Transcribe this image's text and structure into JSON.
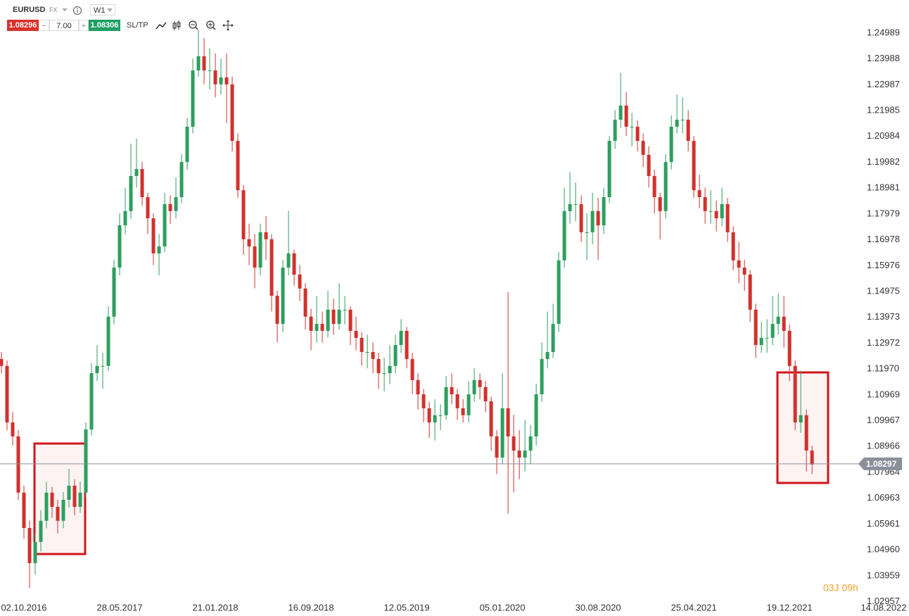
{
  "toolbar": {
    "symbol": "EURUSD",
    "market": "FX",
    "timeframe": "W1",
    "bid": 1.08296,
    "spread": "7.00",
    "ask": 1.08306,
    "sltp": "SL/TP"
  },
  "chart_data": {
    "type": "candlestick",
    "up_color": "#2e9e5e",
    "down_color": "#d0312d",
    "candles": [
      [
        1.1236,
        1.1263,
        1.118,
        1.1209
      ],
      [
        1.1209,
        1.123,
        1.096,
        1.099
      ],
      [
        1.099,
        1.103,
        1.09,
        1.0936
      ],
      [
        1.0936,
        1.096,
        1.069,
        1.0718
      ],
      [
        1.0718,
        1.0745,
        1.054,
        1.0581
      ],
      [
        1.0581,
        1.061,
        1.0349,
        1.0445
      ],
      [
        1.0445,
        1.056,
        1.04,
        1.0527
      ],
      [
        1.0527,
        1.065,
        1.049,
        1.0609
      ],
      [
        1.0609,
        1.076,
        1.058,
        1.0718
      ],
      [
        1.0718,
        1.074,
        1.062,
        1.0663
      ],
      [
        1.0663,
        1.069,
        1.056,
        1.0609
      ],
      [
        1.0609,
        1.072,
        1.058,
        1.069
      ],
      [
        1.069,
        1.081,
        1.066,
        1.0745
      ],
      [
        1.0745,
        1.077,
        1.063,
        1.0663
      ],
      [
        1.0663,
        1.076,
        1.064,
        1.0718
      ],
      [
        1.0718,
        1.099,
        1.07,
        1.0963
      ],
      [
        1.0963,
        1.122,
        1.094,
        1.1181
      ],
      [
        1.1181,
        1.129,
        1.115,
        1.1209
      ],
      [
        1.1209,
        1.126,
        1.112,
        1.1209
      ],
      [
        1.1209,
        1.144,
        1.119,
        1.14
      ],
      [
        1.14,
        1.162,
        1.137,
        1.159
      ],
      [
        1.159,
        1.18,
        1.156,
        1.1754
      ],
      [
        1.1754,
        1.19,
        1.172,
        1.1809
      ],
      [
        1.1809,
        1.207,
        1.178,
        1.1945
      ],
      [
        1.1945,
        1.209,
        1.19,
        1.1972
      ],
      [
        1.1972,
        1.2,
        1.183,
        1.1863
      ],
      [
        1.1863,
        1.188,
        1.172,
        1.1781
      ],
      [
        1.1781,
        1.18,
        1.16,
        1.1645
      ],
      [
        1.1645,
        1.172,
        1.156,
        1.1672
      ],
      [
        1.1672,
        1.188,
        1.165,
        1.1836
      ],
      [
        1.1836,
        1.187,
        1.176,
        1.1809
      ],
      [
        1.1809,
        1.194,
        1.178,
        1.1863
      ],
      [
        1.1863,
        1.203,
        1.184,
        1.1999
      ],
      [
        1.1999,
        1.217,
        1.197,
        1.2136
      ],
      [
        1.2136,
        1.24,
        1.211,
        1.2354
      ],
      [
        1.2354,
        1.251,
        1.233,
        1.2409
      ],
      [
        1.2409,
        1.248,
        1.23,
        1.2354
      ],
      [
        1.2354,
        1.244,
        1.228,
        1.2354
      ],
      [
        1.2354,
        1.242,
        1.225,
        1.23
      ],
      [
        1.23,
        1.24,
        1.226,
        1.2327
      ],
      [
        1.2327,
        1.242,
        1.215,
        1.23
      ],
      [
        1.23,
        1.233,
        1.204,
        1.2081
      ],
      [
        1.2081,
        1.211,
        1.186,
        1.189
      ],
      [
        1.189,
        1.191,
        1.164,
        1.17
      ],
      [
        1.17,
        1.176,
        1.16,
        1.1672
      ],
      [
        1.1672,
        1.172,
        1.151,
        1.159
      ],
      [
        1.159,
        1.176,
        1.156,
        1.1727
      ],
      [
        1.1727,
        1.179,
        1.162,
        1.17
      ],
      [
        1.17,
        1.172,
        1.142,
        1.1481
      ],
      [
        1.1481,
        1.15,
        1.13,
        1.1372
      ],
      [
        1.1372,
        1.162,
        1.134,
        1.159
      ],
      [
        1.159,
        1.181,
        1.156,
        1.1645
      ],
      [
        1.1645,
        1.166,
        1.152,
        1.1563
      ],
      [
        1.1563,
        1.16,
        1.146,
        1.1509
      ],
      [
        1.1509,
        1.153,
        1.135,
        1.14
      ],
      [
        1.14,
        1.143,
        1.127,
        1.1345
      ],
      [
        1.1345,
        1.148,
        1.13,
        1.1372
      ],
      [
        1.1372,
        1.142,
        1.13,
        1.1345
      ],
      [
        1.1345,
        1.15,
        1.132,
        1.1427
      ],
      [
        1.1427,
        1.147,
        1.133,
        1.1372
      ],
      [
        1.1372,
        1.153,
        1.135,
        1.1427
      ],
      [
        1.1427,
        1.148,
        1.137,
        1.1427
      ],
      [
        1.1427,
        1.144,
        1.129,
        1.1345
      ],
      [
        1.1345,
        1.14,
        1.127,
        1.1318
      ],
      [
        1.1318,
        1.134,
        1.121,
        1.1263
      ],
      [
        1.1263,
        1.133,
        1.12,
        1.1263
      ],
      [
        1.1263,
        1.13,
        1.118,
        1.1236
      ],
      [
        1.1236,
        1.126,
        1.112,
        1.1181
      ],
      [
        1.1181,
        1.124,
        1.111,
        1.1181
      ],
      [
        1.1181,
        1.129,
        1.114,
        1.1209
      ],
      [
        1.1209,
        1.133,
        1.118,
        1.129
      ],
      [
        1.129,
        1.139,
        1.126,
        1.1345
      ],
      [
        1.1345,
        1.136,
        1.12,
        1.1236
      ],
      [
        1.1236,
        1.126,
        1.11,
        1.1154
      ],
      [
        1.1154,
        1.118,
        1.104,
        1.1099
      ],
      [
        1.1099,
        1.112,
        1.099,
        1.1045
      ],
      [
        1.1045,
        1.107,
        1.093,
        1.099
      ],
      [
        1.099,
        1.108,
        1.092,
        1.1018
      ],
      [
        1.1018,
        1.106,
        1.096,
        1.1018
      ],
      [
        1.1018,
        1.117,
        1.1,
        1.1127
      ],
      [
        1.1127,
        1.118,
        1.106,
        1.1099
      ],
      [
        1.1099,
        1.112,
        1.1,
        1.1045
      ],
      [
        1.1045,
        1.108,
        1.099,
        1.1018
      ],
      [
        1.1018,
        1.115,
        1.099,
        1.1099
      ],
      [
        1.1099,
        1.12,
        1.107,
        1.1154
      ],
      [
        1.1154,
        1.118,
        1.108,
        1.1127
      ],
      [
        1.1127,
        1.115,
        1.103,
        1.1072
      ],
      [
        1.1072,
        1.109,
        1.088,
        1.0936
      ],
      [
        1.0936,
        1.096,
        1.079,
        1.0854
      ],
      [
        1.0854,
        1.118,
        1.083,
        1.1045
      ],
      [
        1.1045,
        1.1495,
        1.0636,
        1.0936
      ],
      [
        1.0936,
        1.102,
        1.072,
        1.0881
      ],
      [
        1.0881,
        1.096,
        1.077,
        1.0854
      ],
      [
        1.0854,
        1.1,
        1.08,
        1.0881
      ],
      [
        1.0881,
        1.098,
        1.083,
        1.0936
      ],
      [
        1.0936,
        1.114,
        1.09,
        1.1099
      ],
      [
        1.1099,
        1.13,
        1.107,
        1.1236
      ],
      [
        1.1236,
        1.142,
        1.12,
        1.1263
      ],
      [
        1.1263,
        1.145,
        1.124,
        1.1372
      ],
      [
        1.1372,
        1.165,
        1.134,
        1.1618
      ],
      [
        1.1618,
        1.19,
        1.159,
        1.1809
      ],
      [
        1.1809,
        1.196,
        1.176,
        1.1836
      ],
      [
        1.1836,
        1.192,
        1.177,
        1.1836
      ],
      [
        1.1836,
        1.187,
        1.169,
        1.1727
      ],
      [
        1.1727,
        1.18,
        1.162,
        1.1727
      ],
      [
        1.1727,
        1.188,
        1.168,
        1.1809
      ],
      [
        1.1809,
        1.186,
        1.162,
        1.1754
      ],
      [
        1.1754,
        1.19,
        1.172,
        1.1863
      ],
      [
        1.1863,
        1.21,
        1.184,
        1.2081
      ],
      [
        1.2081,
        1.22,
        1.205,
        1.2163
      ],
      [
        1.2163,
        1.2345,
        1.213,
        1.2218
      ],
      [
        1.2218,
        1.227,
        1.21,
        1.2136
      ],
      [
        1.2136,
        1.219,
        1.206,
        1.2136
      ],
      [
        1.2136,
        1.216,
        1.204,
        1.2081
      ],
      [
        1.2081,
        1.211,
        1.198,
        1.2027
      ],
      [
        1.2027,
        1.206,
        1.19,
        1.1945
      ],
      [
        1.1945,
        1.197,
        1.18,
        1.1863
      ],
      [
        1.1863,
        1.188,
        1.17,
        1.1809
      ],
      [
        1.1809,
        1.203,
        1.178,
        1.1999
      ],
      [
        1.1999,
        1.218,
        1.197,
        1.2136
      ],
      [
        1.2136,
        1.226,
        1.211,
        1.2163
      ],
      [
        1.2163,
        1.225,
        1.211,
        1.2163
      ],
      [
        1.2163,
        1.22,
        1.204,
        1.2081
      ],
      [
        1.2081,
        1.21,
        1.186,
        1.189
      ],
      [
        1.189,
        1.195,
        1.182,
        1.1863
      ],
      [
        1.1863,
        1.19,
        1.176,
        1.1809
      ],
      [
        1.1809,
        1.189,
        1.176,
        1.1809
      ],
      [
        1.1809,
        1.185,
        1.173,
        1.1781
      ],
      [
        1.1781,
        1.19,
        1.175,
        1.1836
      ],
      [
        1.1836,
        1.186,
        1.169,
        1.1727
      ],
      [
        1.1727,
        1.175,
        1.158,
        1.1618
      ],
      [
        1.1618,
        1.169,
        1.153,
        1.159
      ],
      [
        1.159,
        1.162,
        1.15,
        1.1563
      ],
      [
        1.1563,
        1.158,
        1.138,
        1.1427
      ],
      [
        1.1427,
        1.145,
        1.124,
        1.129
      ],
      [
        1.129,
        1.138,
        1.126,
        1.1318
      ],
      [
        1.1318,
        1.139,
        1.126,
        1.1318
      ],
      [
        1.1318,
        1.148,
        1.129,
        1.1372
      ],
      [
        1.1372,
        1.149,
        1.133,
        1.14
      ],
      [
        1.14,
        1.148,
        1.128,
        1.1345
      ],
      [
        1.1345,
        1.137,
        1.115,
        1.1209
      ],
      [
        1.1209,
        1.123,
        1.096,
        1.099
      ],
      [
        1.099,
        1.119,
        1.095,
        1.1018
      ],
      [
        1.1018,
        1.104,
        1.08,
        1.0881
      ],
      [
        1.0881,
        1.09,
        1.079,
        1.0827
      ]
    ],
    "xlim": [
      -0.25,
      151.6
    ],
    "xticks": [
      {
        "value": 4,
        "label": "02.10.2016"
      },
      {
        "value": 21,
        "label": "28.05.2017"
      },
      {
        "value": 38,
        "label": "21.01.2018"
      },
      {
        "value": 55,
        "label": "16.09.2018"
      },
      {
        "value": 72,
        "label": "12.05.2019"
      },
      {
        "value": 89,
        "label": "05.01.2020"
      },
      {
        "value": 106,
        "label": "30.08.2020"
      },
      {
        "value": 123,
        "label": "25.04.2021"
      },
      {
        "value": 140,
        "label": "19.12.2021"
      },
      {
        "value": 157,
        "label": "14.08.2022"
      }
    ],
    "ylim": [
      1.024,
      1.2627
    ],
    "yticks": [
      1.24989,
      1.23988,
      1.22987,
      1.21985,
      1.20984,
      1.19982,
      1.18981,
      1.17979,
      1.16978,
      1.15976,
      1.14975,
      1.13973,
      1.12972,
      {
        "value": 1.1197,
        "label": "1.11970"
      },
      1.10969,
      1.09967,
      1.08966,
      1.07964,
      1.06963,
      1.05961,
      {
        "value": 1.0496,
        "label": "1.04960"
      },
      1.03959,
      1.02957
    ],
    "current_price": 1.08297,
    "countdown": "03J 09h"
  }
}
